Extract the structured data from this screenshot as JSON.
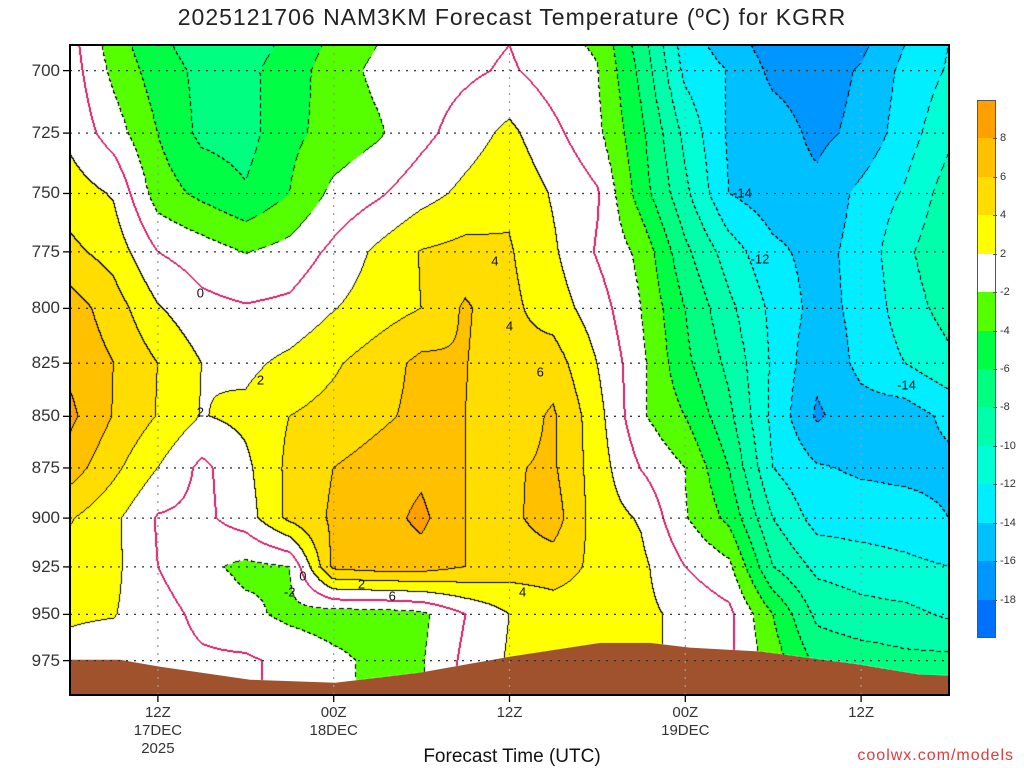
{
  "title": "2025121706 NAM3KM Forecast Temperature (ºC) for KGRR",
  "credit": "coolwx.com/models",
  "chart_data": {
    "type": "heatmap",
    "subtype": "filled-contour time-height",
    "title": "2025121706 NAM3KM Forecast Temperature (ºC) for KGRR",
    "xlabel": "Forecast Time (UTC)",
    "ylabel": "",
    "x_units": "forecast hour",
    "y_units": "hPa",
    "xlim": [
      0,
      60
    ],
    "ylim": [
      690,
      994
    ],
    "y_scale": "log",
    "y_inverted": true,
    "grid": true,
    "yticks": [
      700,
      725,
      750,
      775,
      800,
      825,
      850,
      875,
      900,
      925,
      950,
      975
    ],
    "xticks": [
      {
        "hour": 6,
        "lines": [
          "12Z",
          "17DEC",
          "2025"
        ]
      },
      {
        "hour": 18,
        "lines": [
          "00Z",
          "18DEC"
        ]
      },
      {
        "hour": 30,
        "lines": [
          "12Z"
        ]
      },
      {
        "hour": 42,
        "lines": [
          "00Z",
          "19DEC"
        ]
      },
      {
        "hour": 54,
        "lines": [
          "12Z"
        ]
      }
    ],
    "hours": [
      0,
      3,
      6,
      9,
      12,
      15,
      18,
      21,
      24,
      27,
      30,
      33,
      36,
      39,
      42,
      45,
      48,
      51,
      54,
      57,
      60
    ],
    "pressures": [
      690,
      700,
      725,
      750,
      775,
      800,
      825,
      850,
      875,
      900,
      925,
      950,
      975,
      995
    ],
    "temperature": [
      [
        0.8,
        -3,
        -5.5,
        -7,
        -7,
        -5.5,
        -3.5,
        -2,
        -1.2,
        -0.6,
        0,
        -1.5,
        -2.2,
        -7,
        -13,
        -15,
        -17,
        -17.5,
        -16.5,
        -14,
        -12
      ],
      [
        1,
        -2.5,
        -5,
        -6.5,
        -6.5,
        -5,
        -3,
        -1.5,
        -1,
        -0.4,
        0.3,
        -1,
        -1.9,
        -6.5,
        -12.5,
        -14.1,
        -16.5,
        -17,
        -15.8,
        -13.5,
        -11.8
      ],
      [
        1.5,
        -1,
        -4,
        -6.5,
        -6.8,
        -4.5,
        -3.3,
        -2.3,
        -0.6,
        1,
        2.5,
        0.5,
        -1.5,
        -5.5,
        -10.5,
        -14.3,
        -15,
        -16.5,
        -15.5,
        -13,
        -10.5
      ],
      [
        3,
        1.8,
        -3,
        -4.5,
        -5.8,
        -4,
        -1.5,
        -0.3,
        1.2,
        2.5,
        3.6,
        1.8,
        0.2,
        -5,
        -9.5,
        -14,
        -15.2,
        -15.5,
        -13.5,
        -11.8,
        -9
      ],
      [
        4.5,
        3.2,
        0,
        -1,
        -2.1,
        -1.3,
        0.5,
        2.4,
        4.1,
        4.6,
        4.2,
        2.3,
        -0.2,
        -2.5,
        -7.5,
        -11,
        -13.5,
        -14.7,
        -13.3,
        -10.5,
        -8.3
      ],
      [
        7,
        5,
        2.2,
        0.6,
        0.2,
        0.5,
        1.9,
        3,
        4,
        6.3,
        4.5,
        3,
        1,
        -2,
        -6,
        -9.5,
        -12.5,
        -14.7,
        -13.5,
        -11,
        -9.2
      ],
      [
        7.5,
        6,
        4,
        2,
        1.5,
        2.5,
        3.7,
        5,
        6.5,
        6.1,
        4.5,
        5,
        2,
        -1.5,
        -5.5,
        -8.5,
        -12.3,
        -15.5,
        -13.5,
        -12,
        -10.5
      ],
      [
        8.5,
        5.9,
        3.9,
        1.9,
        2.5,
        4,
        4.7,
        5.6,
        6.5,
        6,
        4.8,
        6.3,
        2.8,
        -1.7,
        -4,
        -7.5,
        -12.5,
        -16.3,
        -14.8,
        -15,
        -13.5
      ],
      [
        7,
        4.5,
        2,
        -0.5,
        1.5,
        4.5,
        6,
        6.8,
        7.5,
        6,
        5.8,
        6.3,
        3,
        -0.1,
        -2,
        -6,
        -12,
        -13.8,
        -14.3,
        -14.5,
        -14.5
      ],
      [
        4.2,
        2.5,
        -0.2,
        -0.5,
        1,
        4.5,
        6.3,
        7,
        8.5,
        6,
        5.5,
        7,
        3,
        1.8,
        -1.8,
        -4.5,
        -10,
        -12.8,
        -13,
        -13.2,
        -14
      ],
      [
        3,
        2.5,
        0,
        -1.5,
        -2.5,
        -2,
        6.5,
        7,
        7,
        6,
        5,
        5,
        3.5,
        2.5,
        0,
        -1.5,
        -8,
        -10.5,
        -11,
        -11.5,
        -12
      ],
      [
        2.2,
        2.1,
        0.8,
        -0.5,
        -1.5,
        -2.5,
        -3,
        -3,
        -2.5,
        0,
        2,
        3,
        3,
        2.5,
        1.5,
        0.5,
        -4,
        -8.5,
        -9.3,
        -9.5,
        -10.3
      ],
      [
        1.5,
        1,
        0.7,
        0.3,
        0.3,
        -0.5,
        -1.5,
        -2.5,
        -2.2,
        0.5,
        2.2,
        3,
        2.8,
        2.5,
        1.5,
        0.3,
        -3,
        -6.5,
        -7,
        -7.5,
        -7.5
      ],
      [
        1.5,
        1,
        0.7,
        0.3,
        0.3,
        -0.5,
        -1.5,
        -2.5,
        -2.2,
        0.5,
        2.2,
        3,
        2.8,
        2.5,
        1.5,
        0.3,
        -3,
        -6.5,
        -7,
        -7.5,
        -7.5
      ]
    ],
    "levels": [
      -18,
      -16,
      -14,
      -12,
      -10,
      -8,
      -6,
      -4,
      -2,
      2,
      4,
      6,
      8
    ],
    "bin_colors": [
      "#0070ff",
      "#0096ff",
      "#00c0ff",
      "#00eeff",
      "#00ffd5",
      "#00ffaa",
      "#00ff80",
      "#00ff44",
      "#55ff00",
      "#ffffff",
      "#ffff00",
      "#ffdd00",
      "#ffc000",
      "#ffa000"
    ],
    "colorbar_labels": [
      "8",
      "6",
      "4",
      "2",
      "-2",
      "-4",
      "-6",
      "-8",
      "-10",
      "-12",
      "-14",
      "-16",
      "-18"
    ],
    "zero_contour_color": "#d0206a",
    "terrain": {
      "color": "#a0522d",
      "hours": [
        0,
        3.4,
        6.1,
        12.3,
        18.1,
        23.9,
        30,
        36.2,
        39.6,
        42.3,
        47.1,
        53.9,
        58,
        60
      ],
      "surface_pressure": [
        974.5,
        974.5,
        978.3,
        985.5,
        987.2,
        981.6,
        972.9,
        965.3,
        965.3,
        967.9,
        970,
        977.2,
        982.7,
        983.2
      ]
    },
    "contour_labels": [
      {
        "text": "0",
        "hour": 8.9,
        "pressure": 793
      },
      {
        "text": "2",
        "hour": 13.0,
        "pressure": 833
      },
      {
        "text": "2",
        "hour": 8.9,
        "pressure": 848
      },
      {
        "text": "4",
        "hour": 29.0,
        "pressure": 779
      },
      {
        "text": "4",
        "hour": 30.0,
        "pressure": 808
      },
      {
        "text": "6",
        "hour": 32.1,
        "pressure": 829
      },
      {
        "text": "-14",
        "hour": 45.9,
        "pressure": 750
      },
      {
        "text": "-12",
        "hour": 47.1,
        "pressure": 778
      },
      {
        "text": "-14",
        "hour": 57.1,
        "pressure": 835
      },
      {
        "text": "0",
        "hour": 15.9,
        "pressure": 930
      },
      {
        "text": "-2",
        "hour": 15.0,
        "pressure": 938
      },
      {
        "text": "2",
        "hour": 19.9,
        "pressure": 934
      },
      {
        "text": "6",
        "hour": 22.0,
        "pressure": 940
      },
      {
        "text": "4",
        "hour": 30.9,
        "pressure": 938
      }
    ]
  }
}
